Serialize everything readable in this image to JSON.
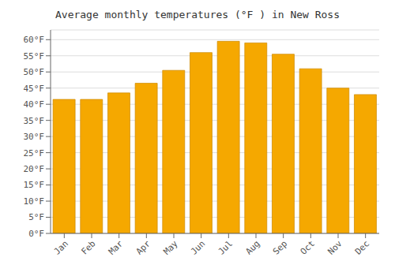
{
  "chart_data": {
    "type": "bar",
    "title": "Average monthly temperatures (°F ) in New Ross",
    "categories": [
      "Jan",
      "Feb",
      "Mar",
      "Apr",
      "May",
      "Jun",
      "Jul",
      "Aug",
      "Sep",
      "Oct",
      "Nov",
      "Dec"
    ],
    "values": [
      41.5,
      41.5,
      43.5,
      46.5,
      50.5,
      56.0,
      59.5,
      59.0,
      55.5,
      51.0,
      45.0,
      43.0
    ],
    "color": "#F5A800",
    "ylim": [
      0,
      63
    ],
    "yticks": [
      {
        "value": 0,
        "label": "0°F"
      },
      {
        "value": 5,
        "label": "5°F"
      },
      {
        "value": 10,
        "label": "10°F"
      },
      {
        "value": 15,
        "label": "15°F"
      },
      {
        "value": 20,
        "label": "20°F"
      },
      {
        "value": 25,
        "label": "25°F"
      },
      {
        "value": 30,
        "label": "30°F"
      },
      {
        "value": 35,
        "label": "35°F"
      },
      {
        "value": 40,
        "label": "40°F"
      },
      {
        "value": 45,
        "label": "45°F"
      },
      {
        "value": 50,
        "label": "50°F"
      },
      {
        "value": 55,
        "label": "55°F"
      },
      {
        "value": 60,
        "label": "60°F"
      }
    ],
    "grid": true
  }
}
